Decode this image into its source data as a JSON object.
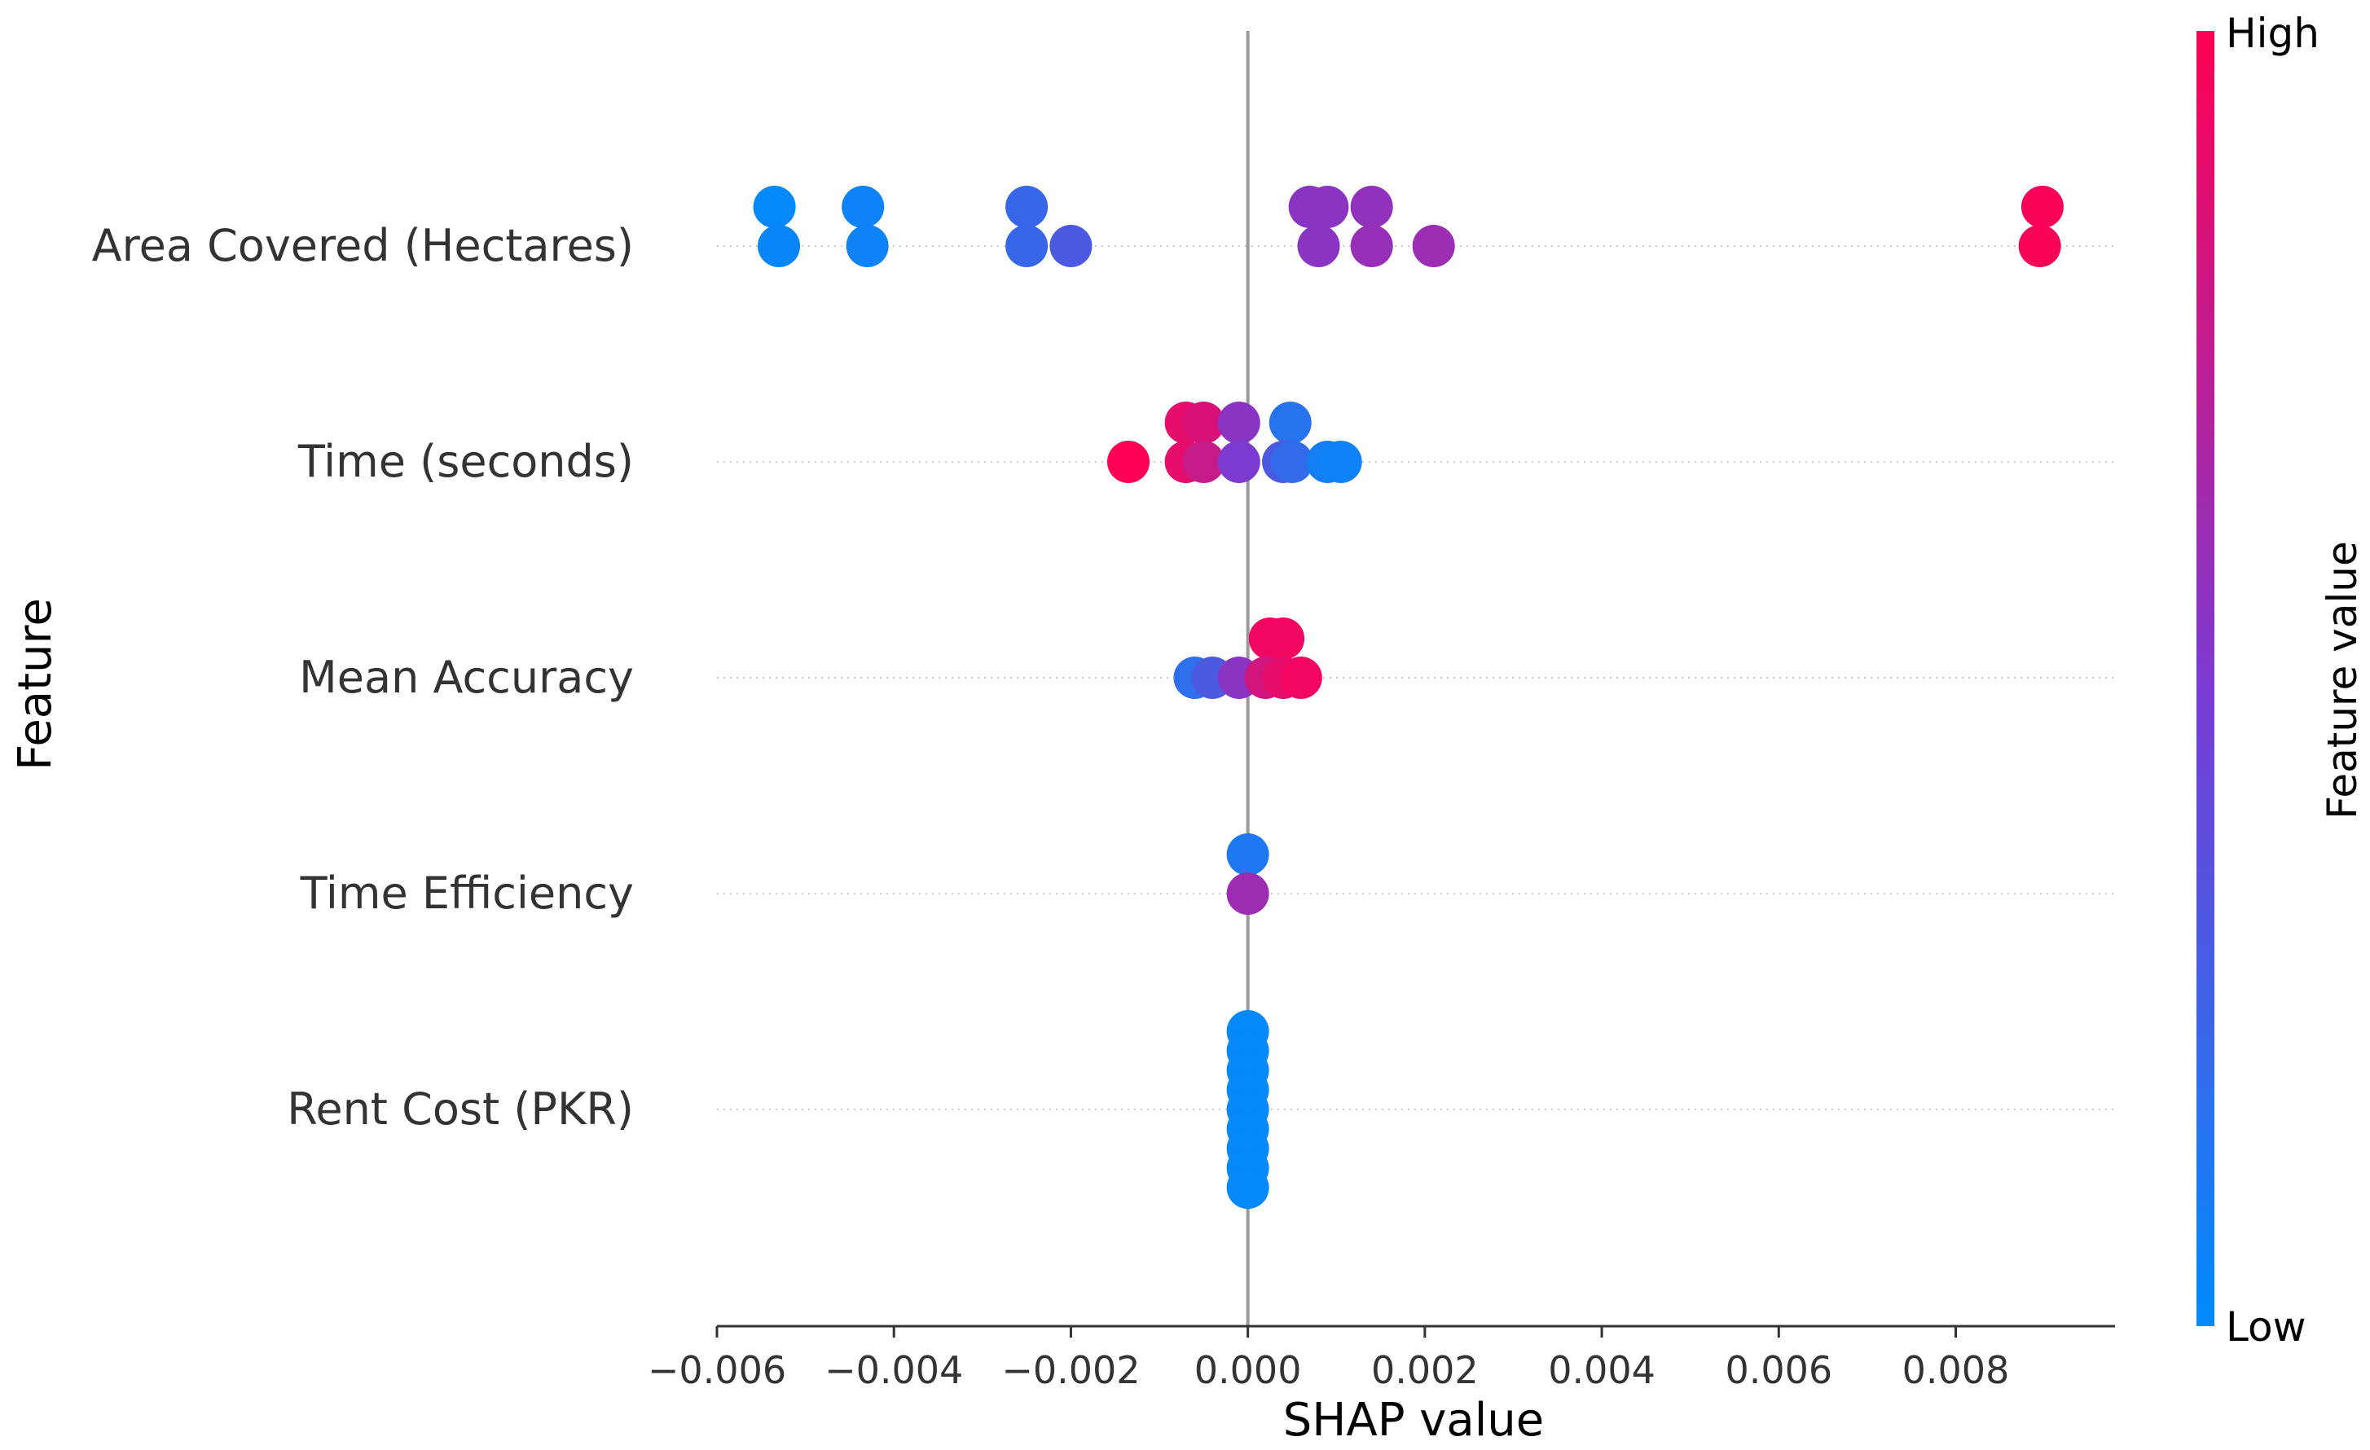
{
  "chart_data": {
    "type": "scatter",
    "subtype": "shap-beeswarm",
    "title": "",
    "xlabel": "SHAP value",
    "ylabel": "Feature",
    "xlim": [
      -0.006,
      0.0098
    ],
    "xticks": [
      -0.006,
      -0.004,
      -0.002,
      0.0,
      0.002,
      0.004,
      0.006,
      0.008
    ],
    "xtick_labels": [
      "−0.006",
      "−0.004",
      "−0.002",
      "0.000",
      "0.002",
      "0.004",
      "0.006",
      "0.008"
    ],
    "colorbar": {
      "label": "Feature value",
      "high_label": "High",
      "low_label": "Low",
      "low_color": "#008bfb",
      "high_color": "#ff0052"
    },
    "features": [
      {
        "name": "Area Covered (Hectares)",
        "points": [
          {
            "x": -0.00535,
            "lane": -1,
            "c": 0.02
          },
          {
            "x": -0.0053,
            "lane": 0,
            "c": 0.03
          },
          {
            "x": -0.00435,
            "lane": -1,
            "c": 0.05
          },
          {
            "x": -0.0043,
            "lane": 0,
            "c": 0.05
          },
          {
            "x": -0.0025,
            "lane": -1,
            "c": 0.22
          },
          {
            "x": -0.0025,
            "lane": 0,
            "c": 0.22
          },
          {
            "x": -0.002,
            "lane": 0,
            "c": 0.3
          },
          {
            "x": 0.0007,
            "lane": -1,
            "c": 0.55
          },
          {
            "x": 0.0009,
            "lane": -1,
            "c": 0.55
          },
          {
            "x": 0.0008,
            "lane": 0,
            "c": 0.55
          },
          {
            "x": 0.0014,
            "lane": -1,
            "c": 0.58
          },
          {
            "x": 0.0014,
            "lane": 0,
            "c": 0.6
          },
          {
            "x": 0.0021,
            "lane": 0,
            "c": 0.62
          },
          {
            "x": 0.00898,
            "lane": -1,
            "c": 0.97
          },
          {
            "x": 0.00895,
            "lane": 0,
            "c": 0.97
          }
        ]
      },
      {
        "name": "Time (seconds)",
        "points": [
          {
            "x": -0.0007,
            "lane": -1,
            "c": 0.9
          },
          {
            "x": -0.0005,
            "lane": -1,
            "c": 0.85
          },
          {
            "x": -0.0001,
            "lane": -1,
            "c": 0.55
          },
          {
            "x": 0.00048,
            "lane": -1,
            "c": 0.15
          },
          {
            "x": -0.00135,
            "lane": 0,
            "c": 1.0
          },
          {
            "x": -0.0007,
            "lane": 0,
            "c": 0.9
          },
          {
            "x": -0.0005,
            "lane": 0,
            "c": 0.78
          },
          {
            "x": -0.0001,
            "lane": 0,
            "c": 0.5
          },
          {
            "x": 0.0004,
            "lane": 0,
            "c": 0.3
          },
          {
            "x": 0.0005,
            "lane": 0,
            "c": 0.2
          },
          {
            "x": 0.0009,
            "lane": 0,
            "c": 0.08
          },
          {
            "x": 0.00105,
            "lane": 0,
            "c": 0.05
          }
        ]
      },
      {
        "name": "Mean Accuracy",
        "points": [
          {
            "x": 0.00025,
            "lane": -1,
            "c": 0.95
          },
          {
            "x": 0.0004,
            "lane": -1,
            "c": 0.95
          },
          {
            "x": -0.0006,
            "lane": 0,
            "c": 0.18
          },
          {
            "x": -0.0004,
            "lane": 0,
            "c": 0.3
          },
          {
            "x": -0.0001,
            "lane": 0,
            "c": 0.55
          },
          {
            "x": 0.0002,
            "lane": 0,
            "c": 0.82
          },
          {
            "x": 0.0004,
            "lane": 0,
            "c": 0.9
          },
          {
            "x": 0.0006,
            "lane": 0,
            "c": 0.95
          }
        ]
      },
      {
        "name": "Time Efficiency",
        "points": [
          {
            "x": 0.0,
            "lane": -1,
            "c": 0.12
          },
          {
            "x": 0.0,
            "lane": 0,
            "c": 0.62
          }
        ]
      },
      {
        "name": "Rent Cost (PKR)",
        "points": [
          {
            "x": 0.0,
            "lane": -2,
            "c": 0.02
          },
          {
            "x": 0.0,
            "lane": -1.5,
            "c": 0.02
          },
          {
            "x": 0.0,
            "lane": -1,
            "c": 0.02
          },
          {
            "x": 0.0,
            "lane": -0.5,
            "c": 0.02
          },
          {
            "x": 0.0,
            "lane": 0,
            "c": 0.02
          },
          {
            "x": 0.0,
            "lane": 0.5,
            "c": 0.02
          },
          {
            "x": 0.0,
            "lane": 1,
            "c": 0.02
          },
          {
            "x": 0.0,
            "lane": 1.5,
            "c": 0.02
          },
          {
            "x": 0.0,
            "lane": 2,
            "c": 0.02
          }
        ]
      }
    ]
  }
}
